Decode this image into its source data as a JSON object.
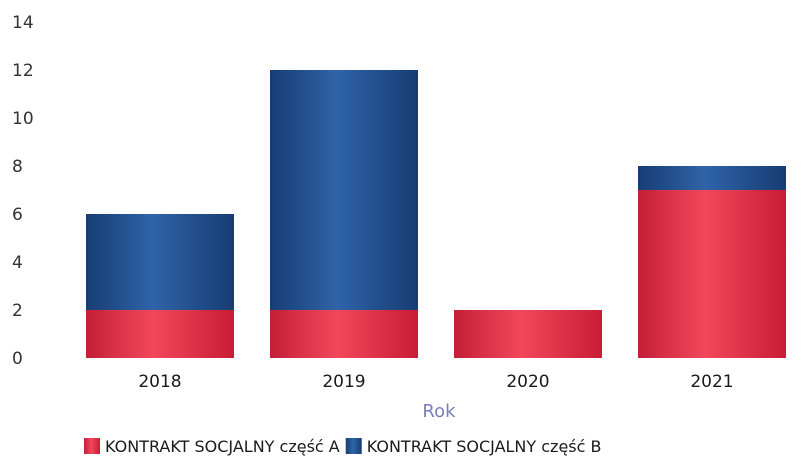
{
  "chart_data": {
    "type": "bar",
    "stacked": true,
    "categories": [
      "2018",
      "2019",
      "2020",
      "2021"
    ],
    "series": [
      {
        "name": "KONTRAKT SOCJALNY część A",
        "values": [
          2,
          2,
          2,
          7
        ],
        "color": "#e8354a"
      },
      {
        "name": "KONTRAKT SOCJALNY część B",
        "values": [
          4,
          10,
          0,
          1
        ],
        "color": "#1f4f8f"
      }
    ],
    "xlabel": "Rok",
    "ylabel": "",
    "ylim": [
      0,
      14
    ],
    "yticks": [
      0,
      2,
      4,
      6,
      8,
      10,
      12,
      14
    ],
    "grid": false,
    "legend_position": "bottom"
  }
}
